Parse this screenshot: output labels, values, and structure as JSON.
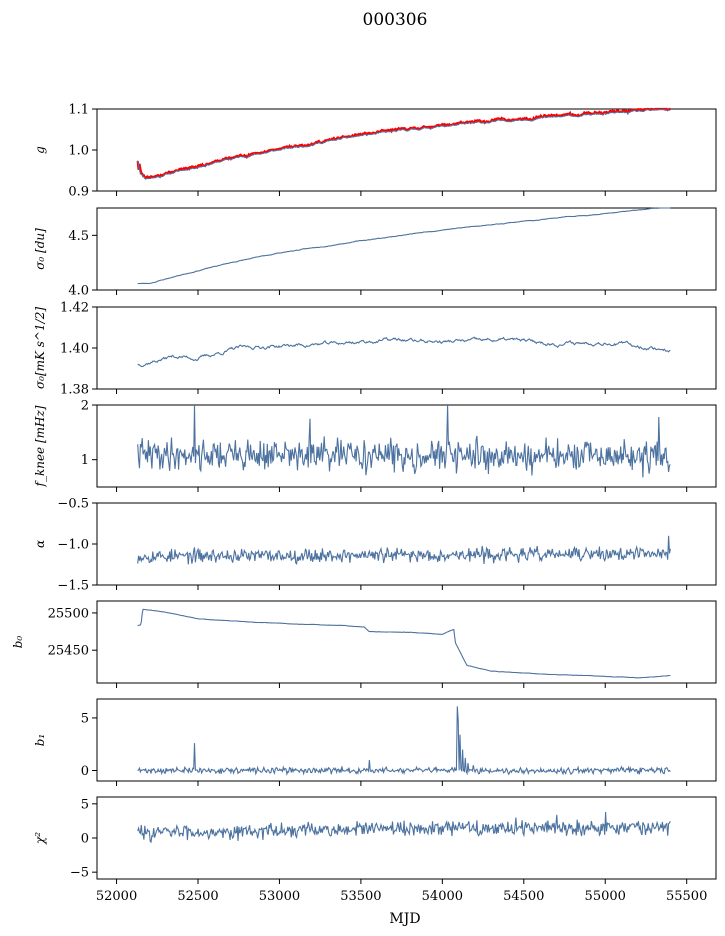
{
  "title": "000306",
  "colors": {
    "line": "#4c72a0",
    "highlight": "#ff0000",
    "axis": "#000000"
  },
  "chart_data": {
    "type": "line",
    "xlabel": "MJD",
    "xlim": [
      51880,
      55680
    ],
    "x_ticks": [
      52000,
      52500,
      53000,
      53500,
      54000,
      54500,
      55000,
      55500
    ],
    "x_tick_labels": [
      "52000",
      "52500",
      "53000",
      "53500",
      "54000",
      "54500",
      "55000",
      "55500"
    ],
    "x_range": [
      52130,
      55400
    ],
    "panels": [
      {
        "name": "g",
        "ylabel": "g",
        "ylim": [
          0.9,
          1.1
        ],
        "yticks": [
          0.9,
          1.0,
          1.1
        ],
        "ytick_labels": [
          "0.9",
          "1.0",
          "1.1"
        ],
        "model": "gain",
        "noise": 0.003,
        "seed": 11,
        "overlay": {
          "color": "red",
          "description": "second gain series, spike near start"
        },
        "knots": [
          [
            52130,
            0.975
          ],
          [
            52145,
            0.945
          ],
          [
            52175,
            0.932
          ],
          [
            52230,
            0.933
          ],
          [
            52400,
            0.95
          ],
          [
            52700,
            0.978
          ],
          [
            53000,
            1.0
          ],
          [
            53500,
            1.035
          ],
          [
            54000,
            1.058
          ],
          [
            54500,
            1.075
          ],
          [
            55000,
            1.088
          ],
          [
            55400,
            1.098
          ]
        ]
      },
      {
        "name": "sigma0-du",
        "ylabel": "σ₀ [du]",
        "ylim": [
          4.0,
          4.75
        ],
        "yticks": [
          4.0,
          4.5
        ],
        "ytick_labels": [
          "4.0",
          "4.5"
        ],
        "model": "knots",
        "noise": 0.004,
        "seed": 23,
        "knots": [
          [
            52130,
            4.06
          ],
          [
            52200,
            4.06
          ],
          [
            52400,
            4.14
          ],
          [
            52700,
            4.25
          ],
          [
            53000,
            4.34
          ],
          [
            53500,
            4.45
          ],
          [
            54000,
            4.55
          ],
          [
            54500,
            4.63
          ],
          [
            55000,
            4.7
          ],
          [
            55400,
            4.76
          ]
        ]
      },
      {
        "name": "sigma0-mk",
        "ylabel": "σ₀[mK s^1/2]",
        "ylim": [
          1.38,
          1.42
        ],
        "yticks": [
          1.38,
          1.4,
          1.42
        ],
        "ytick_labels": [
          "1.38",
          "1.40",
          "1.42"
        ],
        "model": "knots",
        "noise": 0.0012,
        "seed": 37,
        "knots": [
          [
            52130,
            1.392
          ],
          [
            52250,
            1.394
          ],
          [
            52350,
            1.396
          ],
          [
            52500,
            1.395
          ],
          [
            52750,
            1.4
          ],
          [
            53000,
            1.401
          ],
          [
            53300,
            1.402
          ],
          [
            53700,
            1.404
          ],
          [
            54000,
            1.403
          ],
          [
            54400,
            1.404
          ],
          [
            54700,
            1.402
          ],
          [
            55000,
            1.403
          ],
          [
            55400,
            1.399
          ]
        ]
      },
      {
        "name": "fknee",
        "ylabel": "f_knee [mHz]",
        "ylim": [
          0.5,
          2.0
        ],
        "yticks": [
          1.0,
          2.0
        ],
        "ytick_labels": [
          "1",
          "2"
        ],
        "model": "noisy",
        "mean": 1.08,
        "noise": 0.2,
        "seed": 41,
        "spikes": [
          [
            52480,
            2.0
          ],
          [
            54030,
            2.0
          ],
          [
            53190,
            1.75
          ],
          [
            55330,
            1.78
          ]
        ],
        "knots": [
          [
            52130,
            1.1
          ],
          [
            55400,
            1.05
          ]
        ]
      },
      {
        "name": "alpha",
        "ylabel": "α",
        "ylim": [
          -1.5,
          -0.5
        ],
        "yticks": [
          -1.5,
          -1.0,
          -0.5
        ],
        "ytick_labels": [
          "−1.5",
          "−1.0",
          "−0.5"
        ],
        "model": "noisy",
        "mean": -1.1,
        "noise": 0.06,
        "seed": 53,
        "spikes": [
          [
            55390,
            -0.9
          ]
        ],
        "knots": [
          [
            52130,
            -1.15
          ],
          [
            55400,
            -1.12
          ]
        ]
      },
      {
        "name": "b0",
        "ylabel": "b₀",
        "ylim": [
          25406,
          25516
        ],
        "yticks": [
          25450,
          25500
        ],
        "ytick_labels": [
          "25450",
          "25500"
        ],
        "model": "knots",
        "noise": 0.3,
        "seed": 61,
        "knots": [
          [
            52130,
            25483
          ],
          [
            52150,
            25484
          ],
          [
            52160,
            25505
          ],
          [
            52300,
            25501
          ],
          [
            52500,
            25492
          ],
          [
            52800,
            25488
          ],
          [
            53100,
            25485
          ],
          [
            53400,
            25483
          ],
          [
            53520,
            25481
          ],
          [
            53550,
            25475
          ],
          [
            53800,
            25474
          ],
          [
            54000,
            25471
          ],
          [
            54070,
            25478
          ],
          [
            54080,
            25460
          ],
          [
            54150,
            25430
          ],
          [
            54300,
            25422
          ],
          [
            54600,
            25418
          ],
          [
            55000,
            25415
          ],
          [
            55200,
            25413
          ],
          [
            55400,
            25416
          ]
        ]
      },
      {
        "name": "b1",
        "ylabel": "b₁",
        "ylim": [
          -1.0,
          6.8
        ],
        "yticks": [
          0,
          5
        ],
        "ytick_labels": [
          "0",
          "5"
        ],
        "model": "noisy",
        "mean": 0.0,
        "noise": 0.2,
        "seed": 71,
        "spikes": [
          [
            52480,
            2.6
          ],
          [
            53550,
            1.0
          ],
          [
            54090,
            6.1
          ],
          [
            54100,
            4.8
          ],
          [
            54110,
            3.4
          ],
          [
            54125,
            2.0
          ],
          [
            54140,
            1.2
          ],
          [
            54160,
            0.7
          ],
          [
            54190,
            0.5
          ]
        ],
        "knots": [
          [
            52130,
            0.0
          ],
          [
            55400,
            0.0
          ]
        ]
      },
      {
        "name": "chi2",
        "ylabel": "χ²",
        "ylim": [
          -6,
          6
        ],
        "yticks": [
          -5,
          0,
          5
        ],
        "ytick_labels": [
          "−5",
          "0",
          "5"
        ],
        "model": "noisy",
        "mean": 1.3,
        "noise": 0.75,
        "seed": 83,
        "spikes": [
          [
            55000,
            3.8
          ],
          [
            54700,
            3.4
          ],
          [
            54450,
            3.0
          ]
        ],
        "knots": [
          [
            52130,
            0.8
          ],
          [
            52800,
            1.0
          ],
          [
            53600,
            1.3
          ],
          [
            54400,
            1.5
          ],
          [
            55400,
            1.6
          ]
        ]
      }
    ]
  }
}
